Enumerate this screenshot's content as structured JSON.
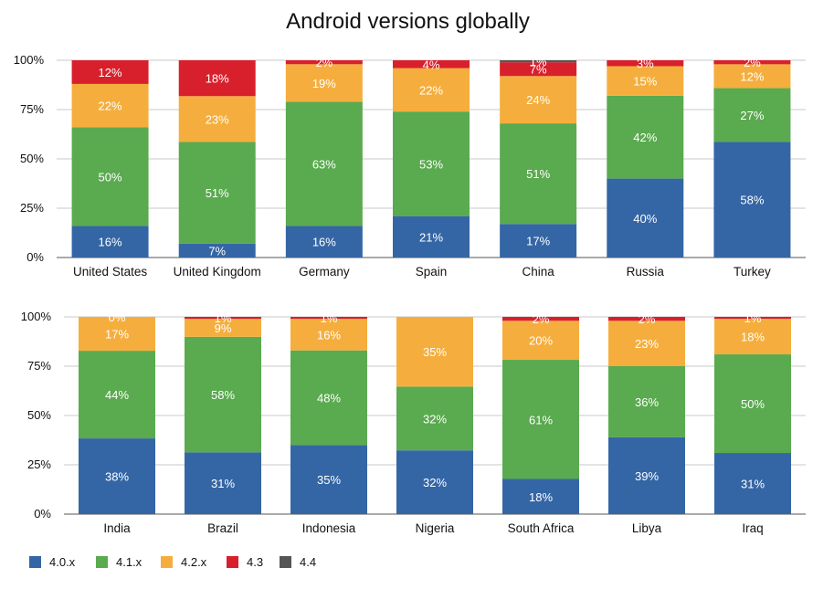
{
  "chart_data": {
    "type": "bar",
    "stacked": true,
    "title": "Android versions globally",
    "ylim": [
      0,
      100
    ],
    "y_tick_labels": [
      "0%",
      "25%",
      "50%",
      "75%",
      "100%"
    ],
    "grid": true,
    "legend": {
      "position": "bottom-left",
      "entries": [
        {
          "name": "4.0.x",
          "color": "#3466a5"
        },
        {
          "name": "4.1.x",
          "color": "#5aaa4f"
        },
        {
          "name": "4.2.x",
          "color": "#f5ae3d"
        },
        {
          "name": "4.3",
          "color": "#d8202c"
        },
        {
          "name": "4.4",
          "color": "#555555"
        }
      ]
    },
    "panels": [
      {
        "categories": [
          "United States",
          "United Kingdom",
          "Germany",
          "Spain",
          "China",
          "Russia",
          "Turkey"
        ],
        "series": [
          {
            "name": "4.0.x",
            "values": [
              16,
              7,
              16,
              21,
              17,
              40,
              58
            ]
          },
          {
            "name": "4.1.x",
            "values": [
              50,
              51,
              63,
              53,
              51,
              42,
              27
            ]
          },
          {
            "name": "4.2.x",
            "values": [
              22,
              23,
              19,
              22,
              24,
              15,
              12
            ]
          },
          {
            "name": "4.3",
            "values": [
              12,
              18,
              2,
              4,
              7,
              3,
              2
            ]
          },
          {
            "name": "4.4",
            "values": [
              0,
              0,
              0,
              0,
              1,
              0,
              0
            ]
          }
        ],
        "labels": [
          [
            "16%",
            "50%",
            "22%",
            "12%",
            ""
          ],
          [
            "7%",
            "51%",
            "23%",
            "18%",
            ""
          ],
          [
            "16%",
            "63%",
            "19%",
            "2%",
            ""
          ],
          [
            "21%",
            "53%",
            "22%",
            "4%",
            ""
          ],
          [
            "17%",
            "51%",
            "24%",
            "7%",
            "1%"
          ],
          [
            "40%",
            "42%",
            "15%",
            "3%",
            ""
          ],
          [
            "58%",
            "27%",
            "12%",
            "2%",
            ""
          ]
        ]
      },
      {
        "categories": [
          "India",
          "Brazil",
          "Indonesia",
          "Nigeria",
          "South Africa",
          "Libya",
          "Iraq"
        ],
        "series": [
          {
            "name": "4.0.x",
            "values": [
              38,
              31,
              35,
              32,
              18,
              39,
              31
            ]
          },
          {
            "name": "4.1.x",
            "values": [
              44,
              58,
              48,
              32,
              61,
              36,
              50
            ]
          },
          {
            "name": "4.2.x",
            "values": [
              17,
              9,
              16,
              35,
              20,
              23,
              18
            ]
          },
          {
            "name": "4.3",
            "values": [
              0,
              1,
              1,
              0,
              2,
              2,
              1
            ]
          },
          {
            "name": "4.4",
            "values": [
              0,
              0,
              0,
              0,
              0,
              0,
              0
            ]
          }
        ],
        "labels": [
          [
            "38%",
            "44%",
            "17%",
            "0%",
            ""
          ],
          [
            "31%",
            "58%",
            "9%",
            "1%",
            ""
          ],
          [
            "35%",
            "48%",
            "16%",
            "1%",
            ""
          ],
          [
            "32%",
            "32%",
            "35%",
            "",
            ""
          ],
          [
            "18%",
            "61%",
            "20%",
            "2%",
            ""
          ],
          [
            "39%",
            "36%",
            "23%",
            "2%",
            ""
          ],
          [
            "31%",
            "50%",
            "18%",
            "1%",
            ""
          ]
        ]
      }
    ]
  }
}
